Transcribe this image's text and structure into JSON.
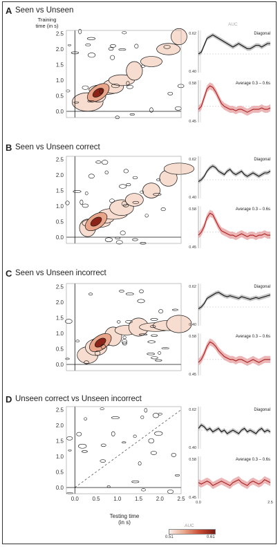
{
  "figure": {
    "panels": [
      {
        "letter": "A",
        "title": "Seen vs Unseen"
      },
      {
        "letter": "B",
        "title": "Seen vs Unseen correct"
      },
      {
        "letter": "C",
        "title": "Seen vs Unseen incorrect"
      },
      {
        "letter": "D",
        "title": "Unseen correct vs Unseen incorrect"
      }
    ],
    "ylabel": "Training\ntime (in s)",
    "xlabel": "Testing time\n(in s)",
    "auc_header": "AUC",
    "colorbar": {
      "title": "AUC",
      "min": "0.51",
      "max": "0.61",
      "low_color": "#f7eee9",
      "high_color": "#7a1a12"
    },
    "colors": {
      "diagonal": "#111111",
      "diagonal_band": "#b8b8b8",
      "average": "#a81e1e",
      "average_band": "#e8a4a4"
    }
  },
  "chart_data": [
    {
      "type": "heatmap",
      "panel": "A",
      "xlabel": "Testing time (in s)",
      "ylabel": "Training time (in s)",
      "x_ticks": [
        "0.0",
        "0.5",
        "1.0",
        "1.5",
        "2.0",
        "2.5"
      ],
      "y_ticks": [
        "0.0",
        "0.5",
        "1.0",
        "1.5",
        "2.0",
        "2.5"
      ],
      "xlim": [
        -0.2,
        2.5
      ],
      "ylim": [
        -0.2,
        2.6
      ],
      "diagonal_line": false,
      "ridge": {
        "x": [
          0.3,
          0.55,
          0.7,
          0.9,
          1.1,
          1.4,
          1.8,
          2.2,
          2.45
        ],
        "y": [
          0.3,
          0.5,
          0.7,
          0.8,
          1.0,
          1.3,
          1.6,
          2.0,
          2.4
        ]
      },
      "peak": {
        "x": 0.55,
        "y": 0.6,
        "auc": 0.61
      }
    },
    {
      "type": "line",
      "panel": "A",
      "name": "Diagonal",
      "ylim": [
        0.4,
        0.62
      ],
      "y_ticks": [
        "0.62",
        "0.40"
      ],
      "x": [
        0,
        0.1,
        0.2,
        0.3,
        0.4,
        0.5,
        0.6,
        0.7,
        0.8,
        0.9,
        1.0,
        1.1,
        1.2,
        1.3,
        1.4,
        1.5,
        1.6,
        1.7,
        1.8,
        1.9,
        2.0,
        2.1,
        2.2,
        2.3,
        2.4,
        2.5
      ],
      "y": [
        0.5,
        0.51,
        0.55,
        0.59,
        0.6,
        0.61,
        0.6,
        0.59,
        0.58,
        0.57,
        0.56,
        0.55,
        0.54,
        0.55,
        0.56,
        0.55,
        0.54,
        0.53,
        0.53,
        0.54,
        0.55,
        0.55,
        0.54,
        0.55,
        0.56,
        0.56
      ]
    },
    {
      "type": "line",
      "panel": "A",
      "name": "Average 0.3 – 0.6s",
      "ylim": [
        0.45,
        0.58
      ],
      "y_ticks": [
        "0.58",
        "0.45"
      ],
      "x": [
        0,
        0.1,
        0.2,
        0.3,
        0.4,
        0.5,
        0.6,
        0.7,
        0.8,
        0.9,
        1.0,
        1.1,
        1.2,
        1.3,
        1.4,
        1.5,
        1.6,
        1.7,
        1.8,
        1.9,
        2.0,
        2.1,
        2.2,
        2.3,
        2.4,
        2.5
      ],
      "y": [
        0.49,
        0.5,
        0.53,
        0.56,
        0.57,
        0.565,
        0.55,
        0.53,
        0.51,
        0.5,
        0.495,
        0.49,
        0.49,
        0.485,
        0.49,
        0.49,
        0.485,
        0.48,
        0.485,
        0.49,
        0.49,
        0.49,
        0.495,
        0.49,
        0.49,
        0.495
      ]
    },
    {
      "type": "heatmap",
      "panel": "B",
      "xlabel": "Testing time (in s)",
      "ylabel": "Training time (in s)",
      "x_ticks": [
        "0.0",
        "0.5",
        "1.0",
        "1.5",
        "2.0",
        "2.5"
      ],
      "y_ticks": [
        "0.0",
        "0.5",
        "1.0",
        "1.5",
        "2.0",
        "2.5"
      ],
      "xlim": [
        -0.2,
        2.5
      ],
      "ylim": [
        -0.2,
        2.6
      ],
      "diagonal_line": false,
      "ridge": {
        "x": [
          0.3,
          0.5,
          0.7,
          0.9,
          1.1,
          1.4,
          1.8,
          2.2,
          2.45
        ],
        "y": [
          0.3,
          0.45,
          0.6,
          0.75,
          0.95,
          1.2,
          1.5,
          1.9,
          2.2
        ]
      },
      "peak": {
        "x": 0.5,
        "y": 0.5,
        "auc": 0.59
      }
    },
    {
      "type": "line",
      "panel": "B",
      "name": "Diagonal",
      "ylim": [
        0.4,
        0.62
      ],
      "y_ticks": [
        "0.62",
        "0.40"
      ],
      "x": [
        0,
        0.1,
        0.2,
        0.3,
        0.4,
        0.5,
        0.6,
        0.7,
        0.8,
        0.9,
        1.0,
        1.1,
        1.2,
        1.3,
        1.4,
        1.5,
        1.6,
        1.7,
        1.8,
        1.9,
        2.0,
        2.1,
        2.2,
        2.3,
        2.4,
        2.5
      ],
      "y": [
        0.49,
        0.5,
        0.52,
        0.55,
        0.57,
        0.58,
        0.57,
        0.55,
        0.54,
        0.53,
        0.55,
        0.56,
        0.54,
        0.53,
        0.54,
        0.55,
        0.53,
        0.52,
        0.53,
        0.54,
        0.53,
        0.52,
        0.53,
        0.54,
        0.54,
        0.55
      ]
    },
    {
      "type": "line",
      "panel": "B",
      "name": "Average 0.3 – 0.6s",
      "ylim": [
        0.45,
        0.58
      ],
      "y_ticks": [
        "0.58",
        "0.45"
      ],
      "x": [
        0,
        0.1,
        0.2,
        0.3,
        0.4,
        0.5,
        0.6,
        0.7,
        0.8,
        0.9,
        1.0,
        1.1,
        1.2,
        1.3,
        1.4,
        1.5,
        1.6,
        1.7,
        1.8,
        1.9,
        2.0,
        2.1,
        2.2,
        2.3,
        2.4,
        2.5
      ],
      "y": [
        0.49,
        0.5,
        0.52,
        0.55,
        0.565,
        0.56,
        0.54,
        0.52,
        0.505,
        0.5,
        0.495,
        0.49,
        0.49,
        0.485,
        0.49,
        0.495,
        0.49,
        0.485,
        0.49,
        0.49,
        0.485,
        0.49,
        0.49,
        0.495,
        0.49,
        0.49
      ]
    },
    {
      "type": "heatmap",
      "panel": "C",
      "xlabel": "Testing time (in s)",
      "ylabel": "Training time (in s)",
      "x_ticks": [
        "0.0",
        "0.5",
        "1.0",
        "1.5",
        "2.0",
        "2.5"
      ],
      "y_ticks": [
        "0.0",
        "0.5",
        "1.0",
        "1.5",
        "2.0",
        "2.5"
      ],
      "xlim": [
        -0.2,
        2.5
      ],
      "ylim": [
        -0.2,
        2.6
      ],
      "diagonal_line": false,
      "ridge": {
        "x": [
          0.3,
          0.5,
          0.7,
          0.9,
          1.2,
          1.5,
          1.9,
          2.2,
          2.45
        ],
        "y": [
          0.3,
          0.55,
          0.75,
          0.9,
          1.1,
          1.2,
          1.2,
          1.25,
          1.3
        ]
      },
      "peak": {
        "x": 0.6,
        "y": 0.7,
        "auc": 0.61
      }
    },
    {
      "type": "line",
      "panel": "C",
      "name": "Diagonal",
      "ylim": [
        0.4,
        0.62
      ],
      "y_ticks": [
        "0.62",
        "0.40"
      ],
      "x": [
        0,
        0.1,
        0.2,
        0.3,
        0.4,
        0.5,
        0.6,
        0.7,
        0.8,
        0.9,
        1.0,
        1.1,
        1.2,
        1.3,
        1.4,
        1.5,
        1.6,
        1.7,
        1.8,
        1.9,
        2.0,
        2.1,
        2.2,
        2.3,
        2.4,
        2.5
      ],
      "y": [
        0.49,
        0.5,
        0.52,
        0.55,
        0.56,
        0.57,
        0.58,
        0.585,
        0.575,
        0.565,
        0.56,
        0.565,
        0.56,
        0.555,
        0.55,
        0.56,
        0.555,
        0.55,
        0.545,
        0.55,
        0.555,
        0.55,
        0.555,
        0.56,
        0.565,
        0.57
      ]
    },
    {
      "type": "line",
      "panel": "C",
      "name": "Average 0.3 – 0.6s",
      "ylim": [
        0.45,
        0.58
      ],
      "y_ticks": [
        "0.58",
        "0.45"
      ],
      "x": [
        0,
        0.1,
        0.2,
        0.3,
        0.4,
        0.5,
        0.6,
        0.7,
        0.8,
        0.9,
        1.0,
        1.1,
        1.2,
        1.3,
        1.4,
        1.5,
        1.6,
        1.7,
        1.8,
        1.9,
        2.0,
        2.1,
        2.2,
        2.3,
        2.4,
        2.5
      ],
      "y": [
        0.49,
        0.5,
        0.52,
        0.545,
        0.56,
        0.555,
        0.545,
        0.53,
        0.52,
        0.51,
        0.505,
        0.5,
        0.5,
        0.495,
        0.5,
        0.5,
        0.495,
        0.49,
        0.495,
        0.5,
        0.495,
        0.49,
        0.495,
        0.5,
        0.5,
        0.5
      ]
    },
    {
      "type": "heatmap",
      "panel": "D",
      "xlabel": "Testing time (in s)",
      "ylabel": "Training time (in s)",
      "x_ticks": [
        "0.0",
        "0.5",
        "1.0",
        "1.5",
        "2.0",
        "2.5"
      ],
      "y_ticks": [
        "0.0",
        "0.5",
        "1.0",
        "1.5",
        "2.0",
        "2.5"
      ],
      "xlim": [
        -0.2,
        2.5
      ],
      "ylim": [
        -0.2,
        2.6
      ],
      "diagonal_line": true,
      "ridge": {
        "x": [],
        "y": []
      },
      "peak": {
        "x": 1.1,
        "y": 1.0,
        "auc": 0.53
      }
    },
    {
      "type": "line",
      "panel": "D",
      "name": "Diagonal",
      "ylim": [
        0.4,
        0.62
      ],
      "y_ticks": [
        "0.62",
        "0.40"
      ],
      "x": [
        0,
        0.1,
        0.2,
        0.3,
        0.4,
        0.5,
        0.6,
        0.7,
        0.8,
        0.9,
        1.0,
        1.1,
        1.2,
        1.3,
        1.4,
        1.5,
        1.6,
        1.7,
        1.8,
        1.9,
        2.0,
        2.1,
        2.2,
        2.3,
        2.4,
        2.5
      ],
      "y": [
        0.51,
        0.53,
        0.52,
        0.5,
        0.51,
        0.49,
        0.5,
        0.51,
        0.49,
        0.5,
        0.48,
        0.49,
        0.5,
        0.49,
        0.48,
        0.5,
        0.51,
        0.49,
        0.5,
        0.49,
        0.48,
        0.5,
        0.51,
        0.49,
        0.5,
        0.49
      ]
    },
    {
      "type": "line",
      "panel": "D",
      "name": "Average 0.3 – 0.6s",
      "ylim": [
        0.45,
        0.58
      ],
      "y_ticks": [
        "0.58",
        "0.45"
      ],
      "x_ticks": [
        "0.0",
        "2.5"
      ],
      "x": [
        0,
        0.1,
        0.2,
        0.3,
        0.4,
        0.5,
        0.6,
        0.7,
        0.8,
        0.9,
        1.0,
        1.1,
        1.2,
        1.3,
        1.4,
        1.5,
        1.6,
        1.7,
        1.8,
        1.9,
        2.0,
        2.1,
        2.2,
        2.3,
        2.4,
        2.5
      ],
      "y": [
        0.5,
        0.495,
        0.5,
        0.505,
        0.5,
        0.49,
        0.495,
        0.5,
        0.505,
        0.5,
        0.495,
        0.49,
        0.5,
        0.505,
        0.51,
        0.5,
        0.495,
        0.49,
        0.5,
        0.505,
        0.5,
        0.495,
        0.5,
        0.51,
        0.505,
        0.5
      ]
    }
  ]
}
